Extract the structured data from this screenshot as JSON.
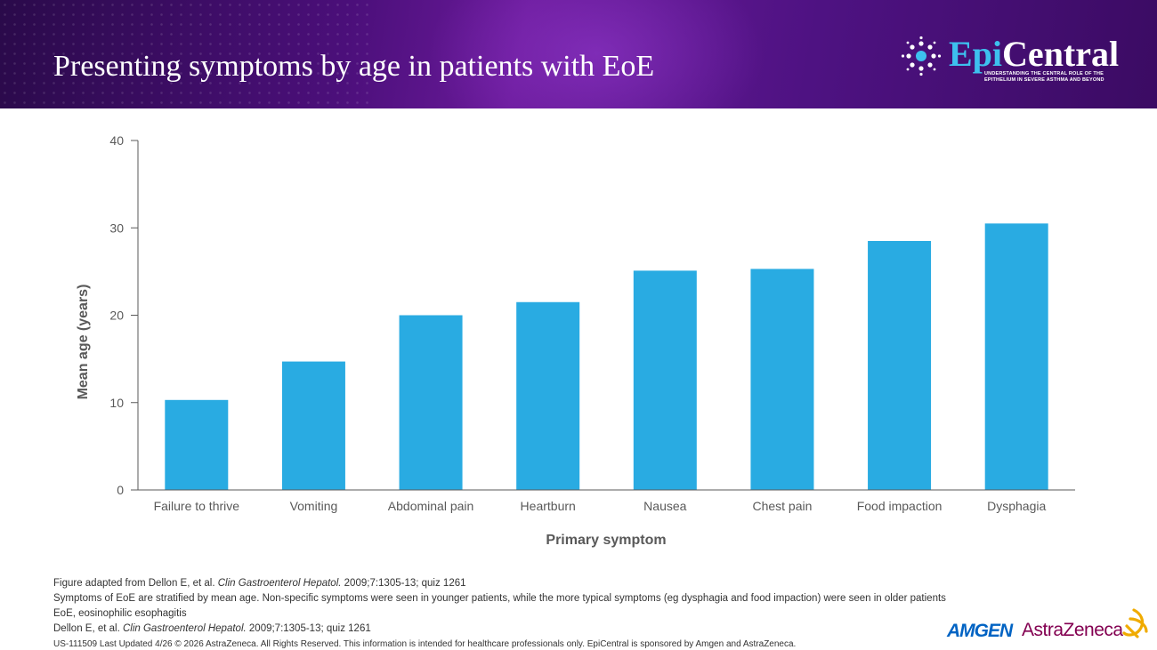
{
  "header": {
    "title": "Presenting symptoms by age in patients with EoE"
  },
  "logo": {
    "word_part1": "Epi",
    "word_part2": "Central",
    "tagline_line1": "UNDERSTANDING THE CENTRAL ROLE OF THE",
    "tagline_line2": "EPITHELIUM IN SEVERE ASTHMA AND BEYOND",
    "accent_color": "#3dc0ee"
  },
  "chart_data": {
    "type": "bar",
    "categories": [
      "Failure to thrive",
      "Vomiting",
      "Abdominal pain",
      "Heartburn",
      "Nausea",
      "Chest pain",
      "Food impaction",
      "Dysphagia"
    ],
    "values": [
      10.3,
      14.7,
      20.0,
      21.5,
      25.1,
      25.3,
      28.5,
      30.5
    ],
    "xlabel": "Primary symptom",
    "ylabel": "Mean age (years)",
    "ylim": [
      0,
      40
    ],
    "yticks": [
      "0",
      "10",
      "20",
      "30",
      "40"
    ],
    "bar_color": "#29abe2",
    "grid": false,
    "legend": "none"
  },
  "footnotes": {
    "line1_pre": "Figure adapted from Dellon E, et al. ",
    "line1_journal": "Clin Gastroenterol Hepatol.",
    "line1_post": " 2009;7:1305-13; quiz 1261",
    "line2": "Symptoms of EoE are stratified by mean age. Non-specific symptoms were seen in younger patients, while the more typical symptoms (eg dysphagia and food impaction) were seen in older patients",
    "line3": "EoE, eosinophilic esophagitis",
    "line4_pre": "Dellon E, et al. ",
    "line4_journal": "Clin Gastroenterol Hepatol.",
    "line4_post": " 2009;7:1305-13; quiz 1261",
    "legal": "US-111509 Last Updated 4/26 © 2026 AstraZeneca. All Rights Reserved. This information is intended for healthcare professionals only. EpiCentral is sponsored by Amgen and AstraZeneca."
  },
  "sponsors": {
    "amgen": "AMGEN",
    "astrazeneca": "AstraZeneca",
    "amgen_color": "#0063c3",
    "astrazeneca_color": "#830051"
  }
}
